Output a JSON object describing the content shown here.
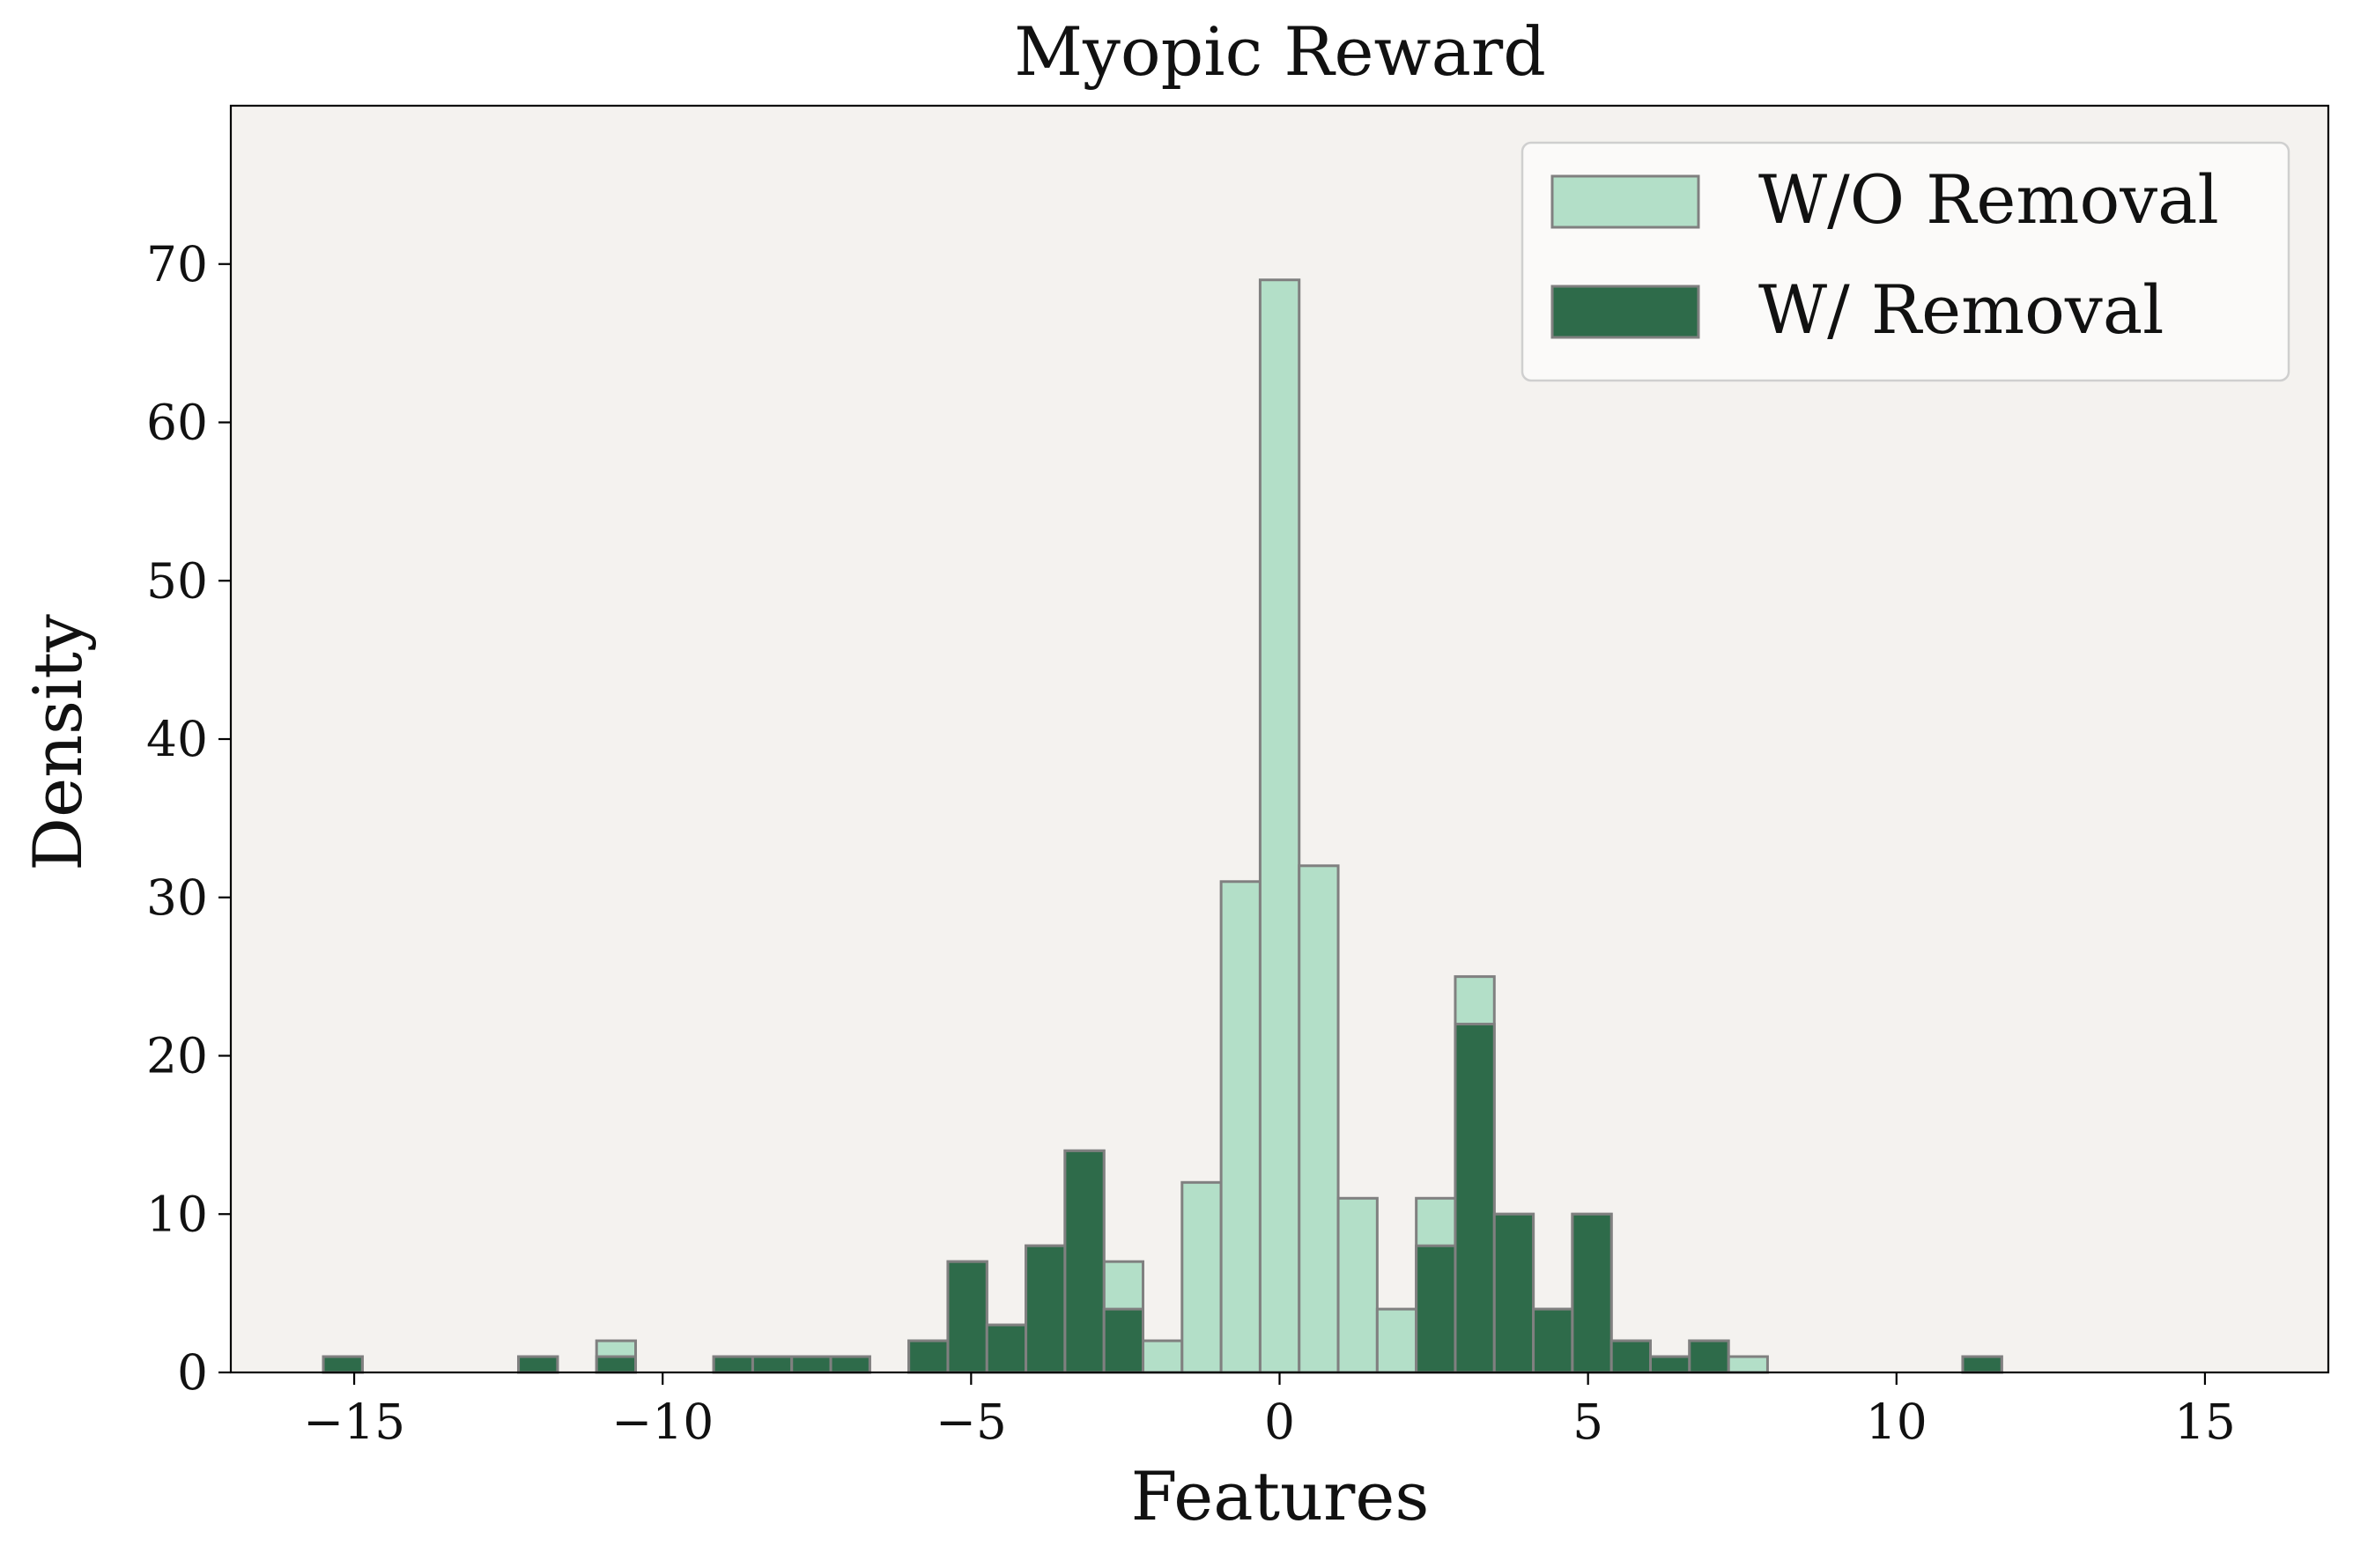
{
  "chart_data": {
    "type": "bar",
    "title": "Myopic Reward",
    "xlabel": "Features",
    "ylabel": "Density",
    "xlim": [
      -17,
      17
    ],
    "ylim": [
      0,
      80
    ],
    "xticks": [
      -15,
      -10,
      -5,
      0,
      5,
      10,
      15
    ],
    "xtick_labels": [
      "−15",
      "−10",
      "−5",
      "0",
      "5",
      "10",
      "15"
    ],
    "yticks": [
      0,
      10,
      20,
      30,
      40,
      50,
      60,
      70
    ],
    "ytick_labels": [
      "0",
      "10",
      "20",
      "30",
      "40",
      "50",
      "60",
      "70"
    ],
    "bin_edges_start": -15.5,
    "bin_width": 0.6327,
    "grid": false,
    "legend_position": "top-right",
    "background_color": "#f4f2ef",
    "edge_color": "#808080",
    "series": [
      {
        "name": "W/O Removal",
        "color": "#b3dfc8",
        "values": [
          1,
          0,
          0,
          0,
          0,
          1,
          0,
          2,
          0,
          0,
          1,
          1,
          1,
          1,
          0,
          2,
          7,
          3,
          8,
          14,
          7,
          2,
          12,
          31,
          69,
          32,
          11,
          4,
          11,
          25,
          10,
          4,
          10,
          2,
          1,
          2,
          1,
          0,
          0,
          0,
          0,
          0,
          1,
          0,
          0,
          0,
          0,
          0,
          0,
          0
        ]
      },
      {
        "name": "W/ Removal",
        "color": "#2e6b4a",
        "values": [
          1,
          0,
          0,
          0,
          0,
          1,
          0,
          1,
          0,
          0,
          1,
          1,
          1,
          1,
          0,
          2,
          7,
          3,
          8,
          14,
          4,
          0,
          0,
          0,
          0,
          0,
          0,
          0,
          8,
          22,
          10,
          4,
          10,
          2,
          1,
          2,
          0,
          0,
          0,
          0,
          0,
          0,
          1,
          0,
          0,
          0,
          0,
          0,
          0,
          0
        ]
      }
    ]
  }
}
